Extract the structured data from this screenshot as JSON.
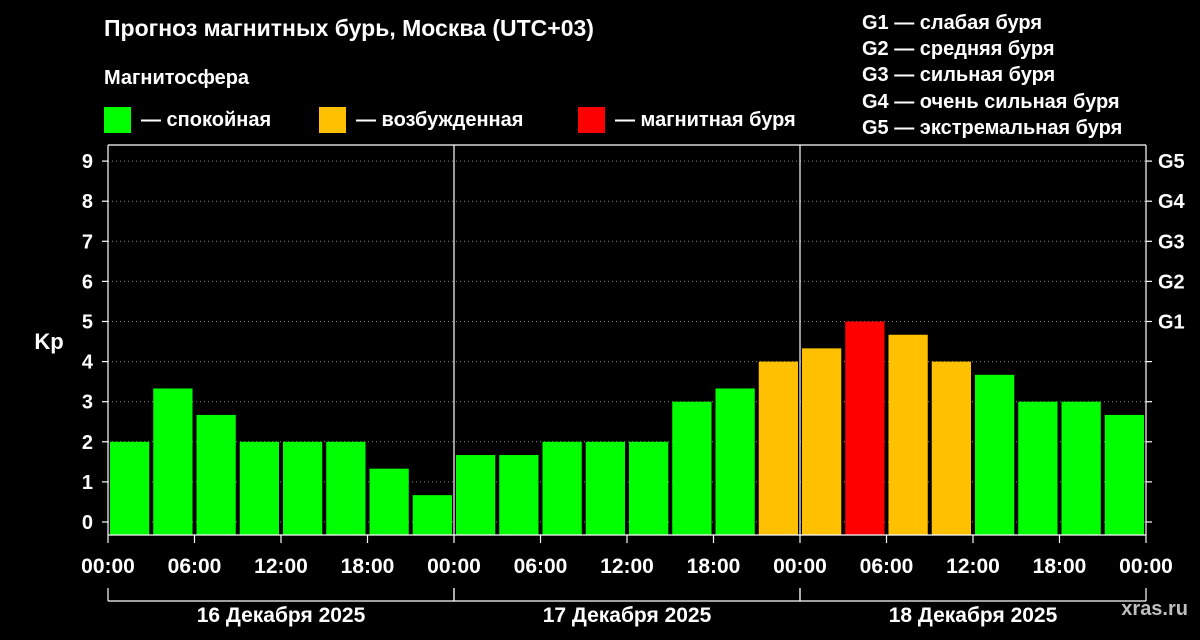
{
  "chart_data": {
    "type": "bar",
    "title": "Прогноз магнитных бурь, Москва (UTC+03)",
    "ylabel": "Kp",
    "ylim": [
      0,
      9
    ],
    "yticks": [
      "0",
      "1",
      "2",
      "3",
      "4",
      "5",
      "6",
      "7",
      "8",
      "9"
    ],
    "right_ticks": [
      {
        "kp": 5,
        "label": "G1"
      },
      {
        "kp": 6,
        "label": "G2"
      },
      {
        "kp": 7,
        "label": "G3"
      },
      {
        "kp": 8,
        "label": "G4"
      },
      {
        "kp": 9,
        "label": "G5"
      }
    ],
    "x_tick_labels": [
      "00:00",
      "06:00",
      "12:00",
      "18:00",
      "00:00",
      "06:00",
      "12:00",
      "18:00",
      "00:00",
      "06:00",
      "12:00",
      "18:00",
      "00:00"
    ],
    "days": [
      "16 Декабря 2025",
      "17 Декабря 2025",
      "18 Декабря 2025"
    ],
    "interval_hours": 3,
    "values": [
      2,
      3.33,
      2.67,
      2,
      2,
      2,
      1.33,
      0.67,
      1.67,
      1.67,
      2,
      2,
      2,
      3,
      3.33,
      4,
      4.33,
      5,
      4.67,
      4,
      3.67,
      3,
      3,
      2.67
    ],
    "legend_title": "Магнитосфера",
    "legend": [
      {
        "label": "— спокойная",
        "color": "#00ff00"
      },
      {
        "label": "— возбужденная",
        "color": "#ffc000"
      },
      {
        "label": "— магнитная буря",
        "color": "#ff0000"
      }
    ],
    "storm_levels": [
      "G1 — слабая буря",
      "G2 — средняя буря",
      "G3 — сильная буря",
      "G4 — очень сильная буря",
      "G5 — экстремальная буря"
    ],
    "grid": true
  },
  "watermark": "xras.ru"
}
